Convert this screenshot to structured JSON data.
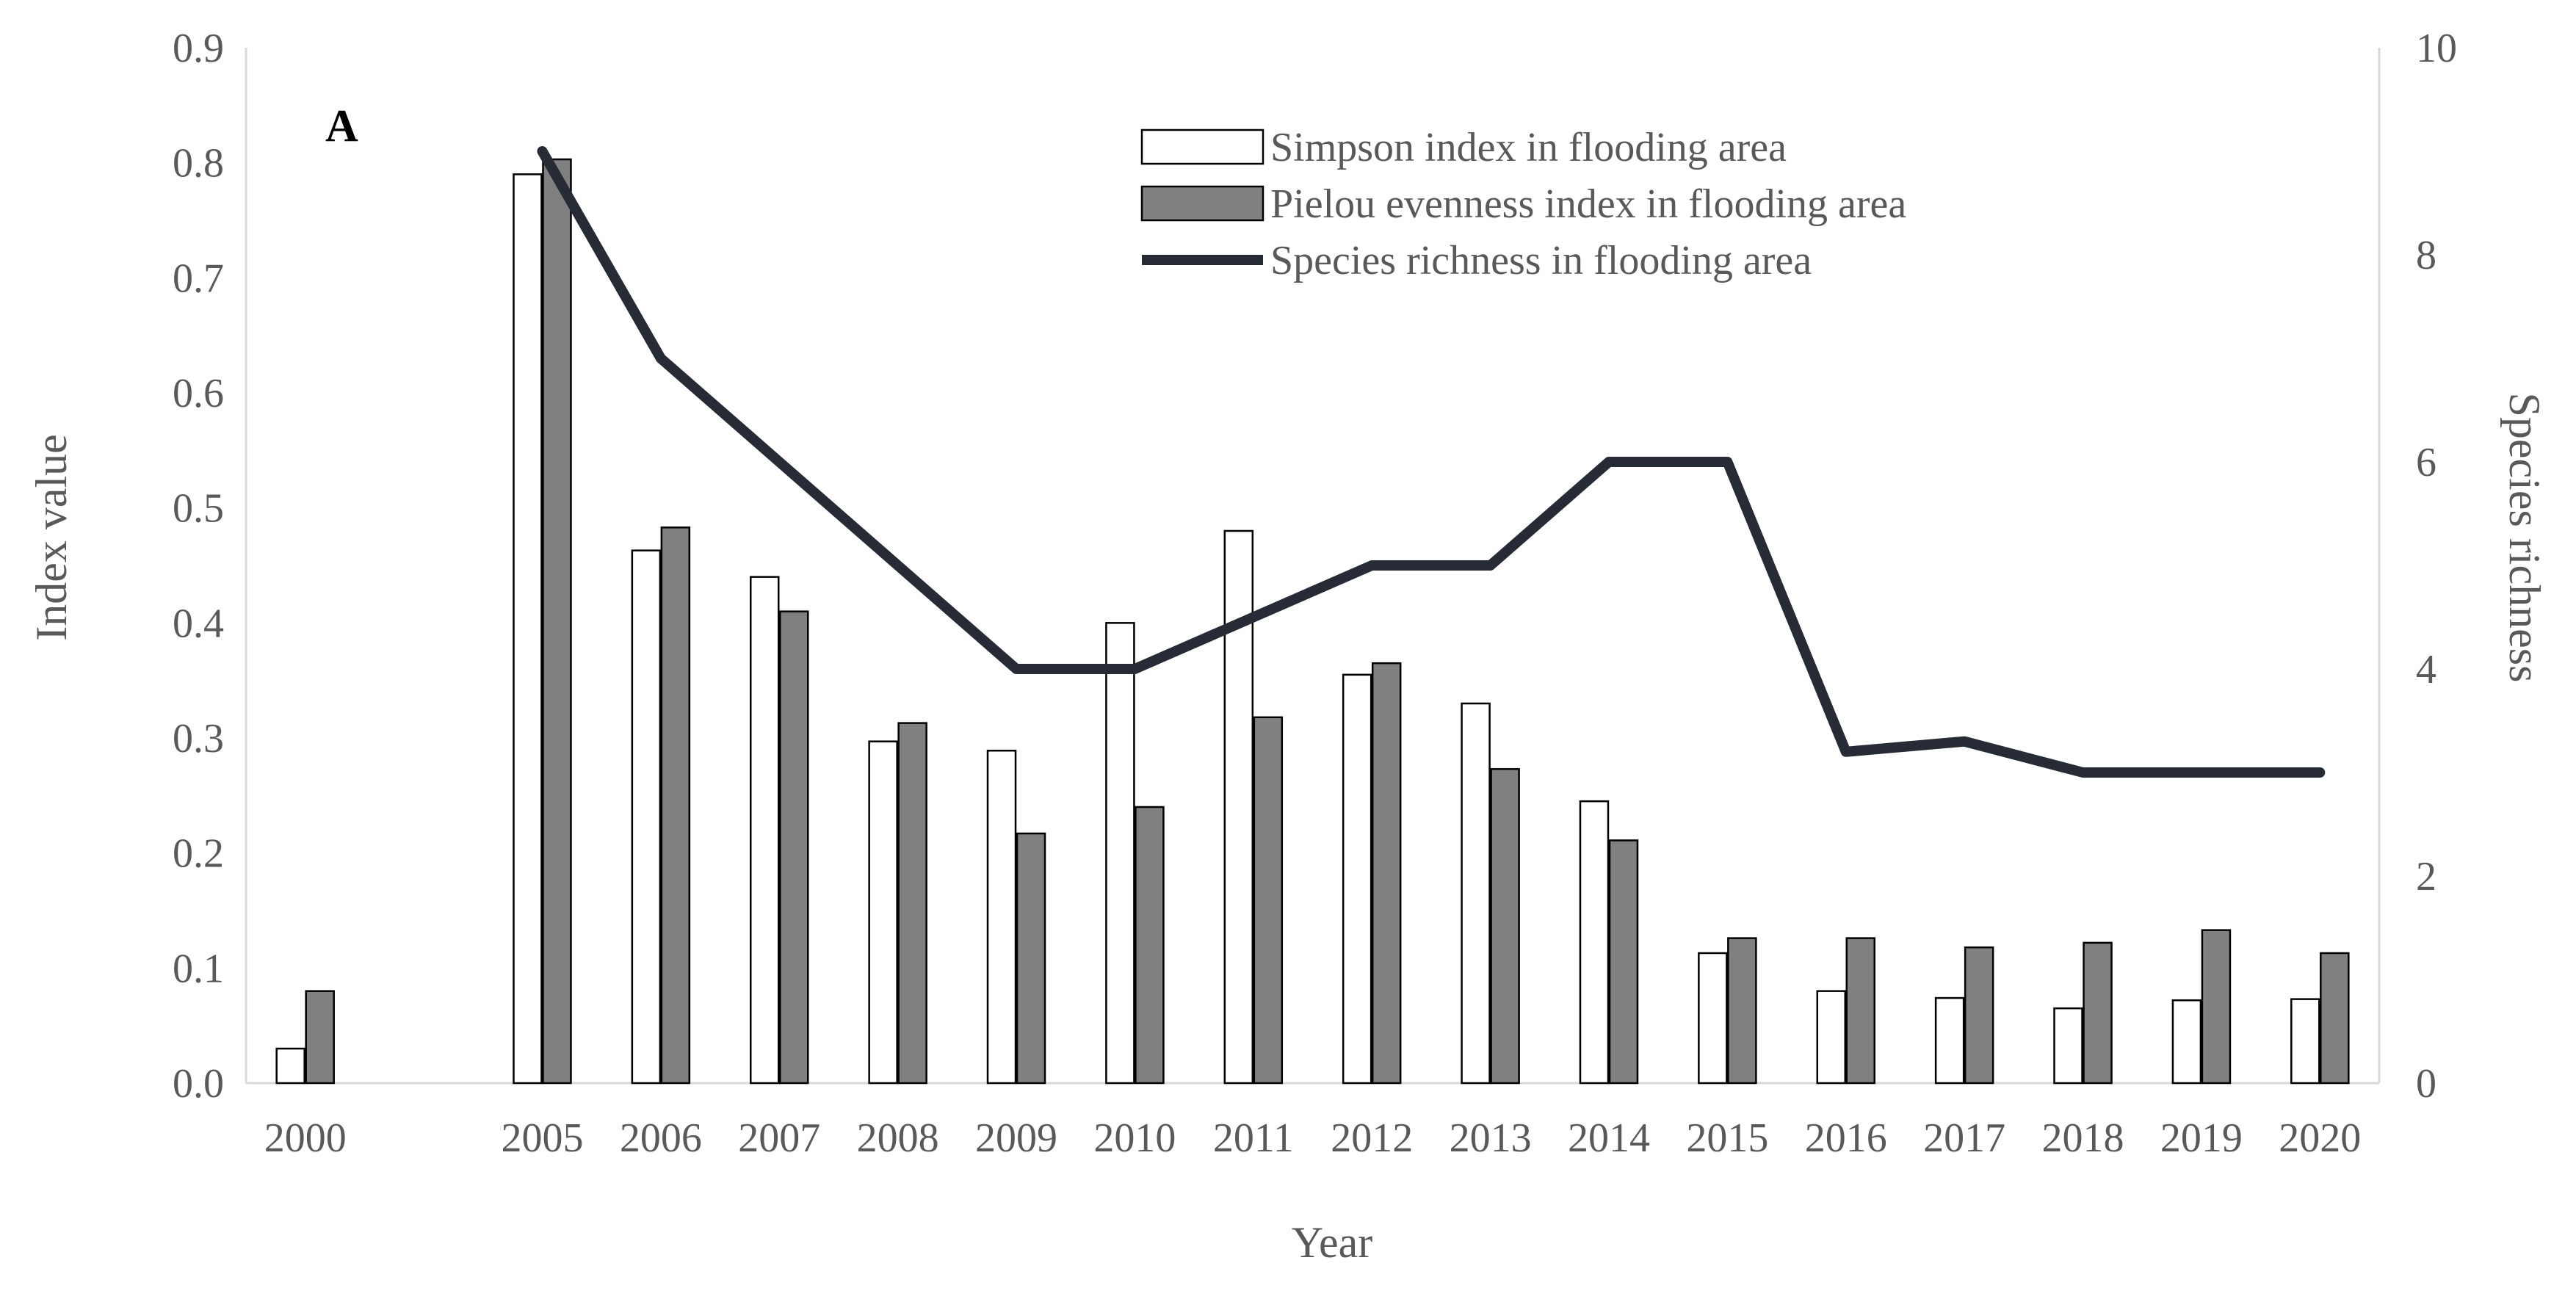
{
  "chart_data": {
    "type": "bar",
    "panel_label": "A",
    "categories": [
      "2000",
      "2005",
      "2006",
      "2007",
      "2008",
      "2009",
      "2010",
      "2011",
      "2012",
      "2013",
      "2014",
      "2015",
      "2016",
      "2017",
      "2018",
      "2019",
      "2020"
    ],
    "category_positions": [
      2000,
      2002,
      2003,
      2004,
      2005,
      2006,
      2007,
      2008,
      2009,
      2010,
      2011,
      2012,
      2013,
      2014,
      2015,
      2016,
      2017
    ],
    "series": [
      {
        "name": "Simpson index in flooding area",
        "kind": "bar",
        "axis": "left",
        "color": "#ffffff",
        "values": [
          0.03,
          0.79,
          0.463,
          0.44,
          0.297,
          0.289,
          0.4,
          0.48,
          0.355,
          0.33,
          0.245,
          0.113,
          0.08,
          0.074,
          0.065,
          0.072,
          0.073
        ]
      },
      {
        "name": "Pielou evenness index in flooding area",
        "kind": "bar",
        "axis": "left",
        "color": "#808080",
        "values": [
          0.08,
          0.803,
          0.483,
          0.41,
          0.313,
          0.217,
          0.24,
          0.318,
          0.365,
          0.273,
          0.211,
          0.126,
          0.126,
          0.118,
          0.122,
          0.133,
          0.113
        ]
      },
      {
        "name": "Species richness in flooding area",
        "kind": "line",
        "axis": "right",
        "color": "#262b36",
        "values": [
          null,
          9,
          7,
          6,
          5,
          4,
          4,
          4.5,
          5,
          5,
          6,
          6,
          3.2,
          3.3,
          3,
          3,
          3
        ]
      }
    ],
    "xlabel": "Year",
    "ylabel": "Index value",
    "y2label": "Species richness",
    "ylim": [
      0,
      0.9
    ],
    "y2lim": [
      0,
      10
    ],
    "yticks": [
      "0.0",
      "0.1",
      "0.2",
      "0.3",
      "0.4",
      "0.5",
      "0.6",
      "0.7",
      "0.8",
      "0.9"
    ],
    "y2ticks": [
      "0",
      "2",
      "4",
      "6",
      "8",
      "10"
    ],
    "grid": false,
    "legend_position": "top-center"
  }
}
